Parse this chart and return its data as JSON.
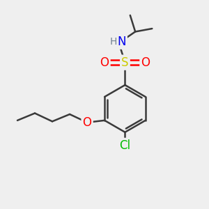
{
  "bg_color": "#efefef",
  "bond_color": "#3a3a3a",
  "bond_width": 1.8,
  "atom_colors": {
    "N": "#0000ee",
    "H": "#708090",
    "S": "#cccc00",
    "O": "#ff0000",
    "Cl": "#00bb00"
  },
  "font_size": 12,
  "figsize": [
    3.0,
    3.0
  ],
  "dpi": 100
}
